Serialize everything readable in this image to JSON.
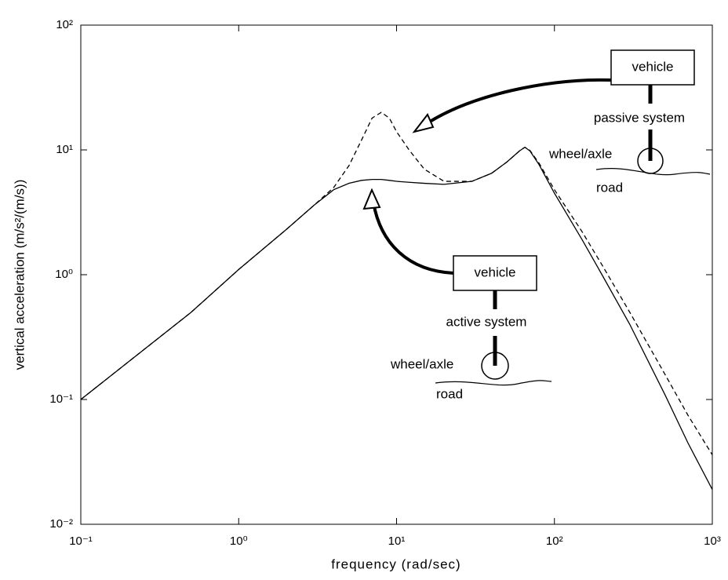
{
  "chart_data": {
    "type": "line",
    "xlabel": "frequency (rad/sec)",
    "ylabel": "vertical acceleration (m/s²/(m/s))",
    "x": [
      0.1,
      0.2,
      0.5,
      1,
      2,
      3,
      4,
      5,
      6,
      7,
      8,
      9,
      10,
      12,
      15,
      20,
      30,
      40,
      50,
      60,
      65,
      70,
      80,
      100,
      150,
      200,
      300,
      500,
      700,
      1000
    ],
    "series": [
      {
        "color": "#000000",
        "dash": false,
        "values": [
          0.1,
          0.2,
          0.5,
          1.1,
          2.3,
          3.6,
          4.8,
          5.4,
          5.7,
          5.8,
          5.8,
          5.7,
          5.6,
          5.5,
          5.4,
          5.3,
          5.6,
          6.5,
          8,
          9.8,
          10.5,
          9.8,
          7.6,
          4.5,
          1.9,
          1.0,
          0.4,
          0.11,
          0.045,
          0.019
        ]
      },
      {
        "color": "#000000",
        "dash": true,
        "values": [
          0.1,
          0.2,
          0.5,
          1.1,
          2.3,
          3.6,
          5,
          7.5,
          12,
          18,
          20,
          18,
          14,
          10,
          7,
          5.6,
          5.6,
          6.5,
          8,
          9.8,
          10.5,
          9.9,
          7.8,
          4.8,
          2.2,
          1.2,
          0.5,
          0.16,
          0.075,
          0.036
        ]
      }
    ],
    "xscale": "log",
    "yscale": "log",
    "xlim": [
      0.1,
      1000
    ],
    "ylim": [
      0.01,
      100
    ],
    "xticks": [
      {
        "value": 0.1,
        "label": "10⁻¹"
      },
      {
        "value": 1,
        "label": "10⁰"
      },
      {
        "value": 10,
        "label": "10¹"
      },
      {
        "value": 100,
        "label": "10²"
      },
      {
        "value": 1000,
        "label": "10³"
      }
    ],
    "yticks": [
      {
        "value": 0.01,
        "label": "10⁻²"
      },
      {
        "value": 0.1,
        "label": "10⁻¹"
      },
      {
        "value": 1,
        "label": "10⁰"
      },
      {
        "value": 10,
        "label": "10¹"
      },
      {
        "value": 100,
        "label": "10²"
      }
    ],
    "grid": false,
    "annotations": [
      "vehicle",
      "passive system",
      "wheel/axle",
      "road",
      "vehicle",
      "active system",
      "wheel/axle",
      "road"
    ]
  }
}
